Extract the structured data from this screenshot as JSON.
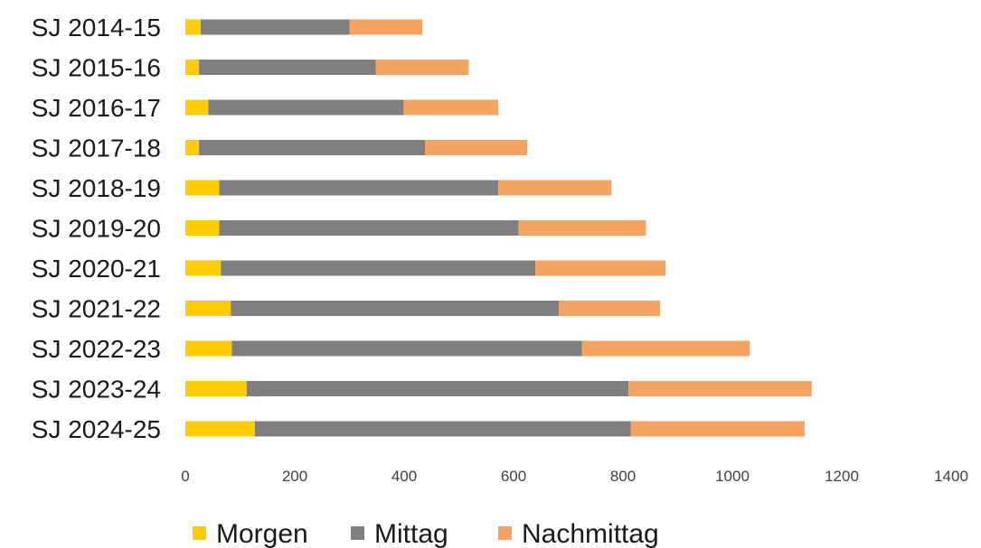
{
  "chart_data": {
    "type": "bar",
    "orientation": "horizontal",
    "stacked": true,
    "categories": [
      "SJ 2014-15",
      "SJ 2015-16",
      "SJ 2016-17",
      "SJ 2017-18",
      "SJ 2018-19",
      "SJ 2019-20",
      "SJ 2020-21",
      "SJ 2021-22",
      "SJ 2022-23",
      "SJ 2023-24",
      "SJ 2024-25"
    ],
    "series": [
      {
        "name": "Morgen",
        "color": "#ffcc00",
        "values": [
          28,
          25,
          42,
          25,
          62,
          62,
          65,
          83,
          85,
          112,
          127
        ]
      },
      {
        "name": "Mittag",
        "color": "#7f7f7f",
        "values": [
          272,
          323,
          357,
          413,
          510,
          547,
          575,
          600,
          640,
          698,
          687
        ]
      },
      {
        "name": "Nachmittag",
        "color": "#f4a460",
        "values": [
          133,
          170,
          173,
          187,
          207,
          233,
          238,
          185,
          307,
          335,
          318
        ]
      }
    ],
    "xlim": [
      0,
      1400
    ],
    "xticks": [
      "0",
      "200",
      "400",
      "600",
      "800",
      "1000",
      "1200",
      "1400"
    ],
    "grid": false,
    "legend_position": "bottom"
  }
}
